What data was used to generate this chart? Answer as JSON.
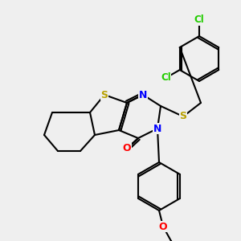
{
  "bg_color": "#efefef",
  "atom_colors": {
    "S": "#b8a000",
    "N": "#0000ff",
    "O": "#ff0000",
    "Cl": "#22cc00",
    "C": "#000000"
  },
  "bond_color": "#000000",
  "bond_width": 1.5,
  "figsize": [
    3.0,
    3.0
  ],
  "dpi": 100
}
